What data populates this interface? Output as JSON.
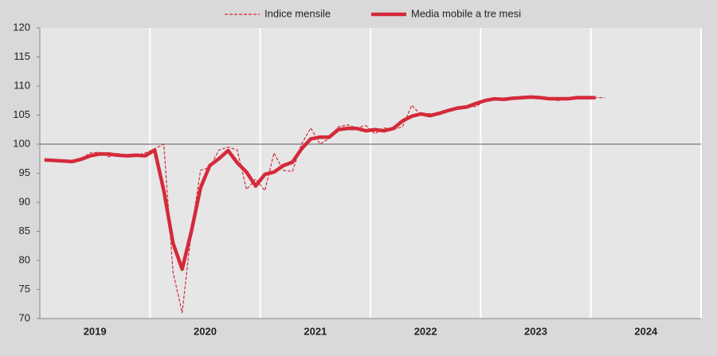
{
  "chart_data": {
    "type": "line",
    "categories": [
      null,
      null,
      null,
      null,
      null,
      null,
      "2019",
      null,
      null,
      null,
      null,
      null,
      null,
      null,
      null,
      null,
      null,
      null,
      "2020",
      null,
      null,
      null,
      null,
      null,
      null,
      null,
      null,
      null,
      null,
      null,
      "2021",
      null,
      null,
      null,
      null,
      null,
      null,
      null,
      null,
      null,
      null,
      null,
      "2022",
      null,
      null,
      null,
      null,
      null,
      null,
      null,
      null,
      null,
      null,
      null,
      "2023",
      null,
      null,
      null,
      null,
      null,
      null,
      null,
      null,
      null,
      null,
      null,
      "2024",
      null,
      null,
      null,
      null,
      null
    ],
    "series": [
      {
        "name": "Indice mensile",
        "color": "#d42a3a",
        "style": "dashed",
        "values": [
          97.3,
          97.2,
          97.0,
          96.8,
          97.5,
          98.5,
          98.6,
          97.8,
          98.4,
          97.9,
          98.1,
          98.5,
          99.2,
          100.0,
          78,
          71,
          85,
          95.5,
          96,
          99,
          99.5,
          99,
          92.2,
          94,
          92,
          98.5,
          95.5,
          95.3,
          100,
          102.8,
          100,
          101,
          103,
          103.3,
          102.8,
          103.2,
          101.8,
          102.8,
          102.5,
          103,
          106.7,
          105,
          105.3,
          105.2,
          105.6,
          106.5,
          106.3,
          106.5,
          107.5,
          107.8,
          107.5,
          107.8,
          108.0,
          108.2,
          107.8,
          107.7,
          107.5,
          107.8,
          107.9,
          108.0,
          108.0,
          108.0,
          null,
          null,
          null,
          null,
          null,
          null,
          null,
          null,
          null,
          null
        ]
      },
      {
        "name": "Media mobile a tre mesi",
        "color": "#d42a3a",
        "style": "thick",
        "values": [
          97.3,
          97.2,
          97.1,
          97.0,
          97.4,
          98.0,
          98.3,
          98.3,
          98.1,
          98.0,
          98.1,
          98.0,
          99.0,
          92,
          83,
          78.5,
          85,
          92.5,
          96.3,
          97.5,
          98.9,
          96.8,
          95.2,
          92.8,
          94.8,
          95.2,
          96.3,
          96.9,
          99.2,
          100.9,
          101.2,
          101.2,
          102.5,
          102.7,
          102.7,
          102.3,
          102.5,
          102.3,
          102.7,
          104.0,
          104.8,
          105.2,
          104.9,
          105.3,
          105.8,
          106.2,
          106.4,
          107.0,
          107.5,
          107.8,
          107.7,
          107.9,
          108.0,
          108.1,
          108.0,
          107.8,
          107.8,
          107.8,
          108.0,
          108.0,
          108.0,
          null,
          null,
          null,
          null,
          null,
          null,
          null,
          null,
          null,
          null,
          null
        ]
      }
    ],
    "ylim": [
      70,
      120
    ],
    "yticks": [
      70,
      75,
      80,
      85,
      90,
      95,
      100,
      105,
      110,
      115,
      120
    ],
    "hline": 100,
    "legend": "top"
  }
}
